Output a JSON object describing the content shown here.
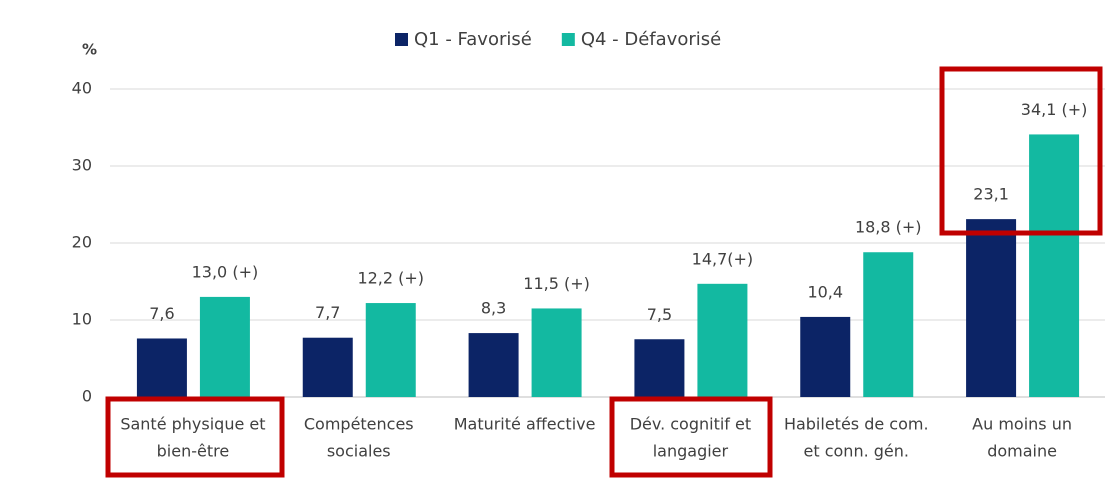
{
  "chart_data": {
    "type": "bar",
    "y_label": "%",
    "categories": [
      [
        "Santé physique et",
        "bien-être"
      ],
      [
        "Compétences",
        "sociales"
      ],
      [
        "Maturité affective"
      ],
      [
        "Dév. cognitif et",
        "langagier"
      ],
      [
        "Habiletés de com.",
        "et conn. gén."
      ],
      [
        "Au moins un",
        "domaine"
      ]
    ],
    "series": [
      {
        "name": "Q1 - Favorisé",
        "color": "#0c2466",
        "values": [
          7.6,
          7.7,
          8.3,
          7.5,
          10.4,
          23.1
        ],
        "value_labels": [
          "7,6",
          "7,7",
          "8,3",
          "7,5",
          "10,4",
          "23,1"
        ]
      },
      {
        "name": "Q4 - Défavorisé",
        "color": "#13b9a1",
        "values": [
          13.0,
          12.2,
          11.5,
          14.7,
          18.8,
          34.1
        ],
        "value_labels": [
          "13,0 (+)",
          "12,2 (+)",
          "11,5 (+)",
          "14,7(+)",
          "18,8 (+)",
          "34,1 (+)"
        ]
      }
    ],
    "ylim": [
      0,
      40
    ],
    "yticks": [
      0,
      10,
      20,
      30,
      40
    ],
    "grid": true
  }
}
